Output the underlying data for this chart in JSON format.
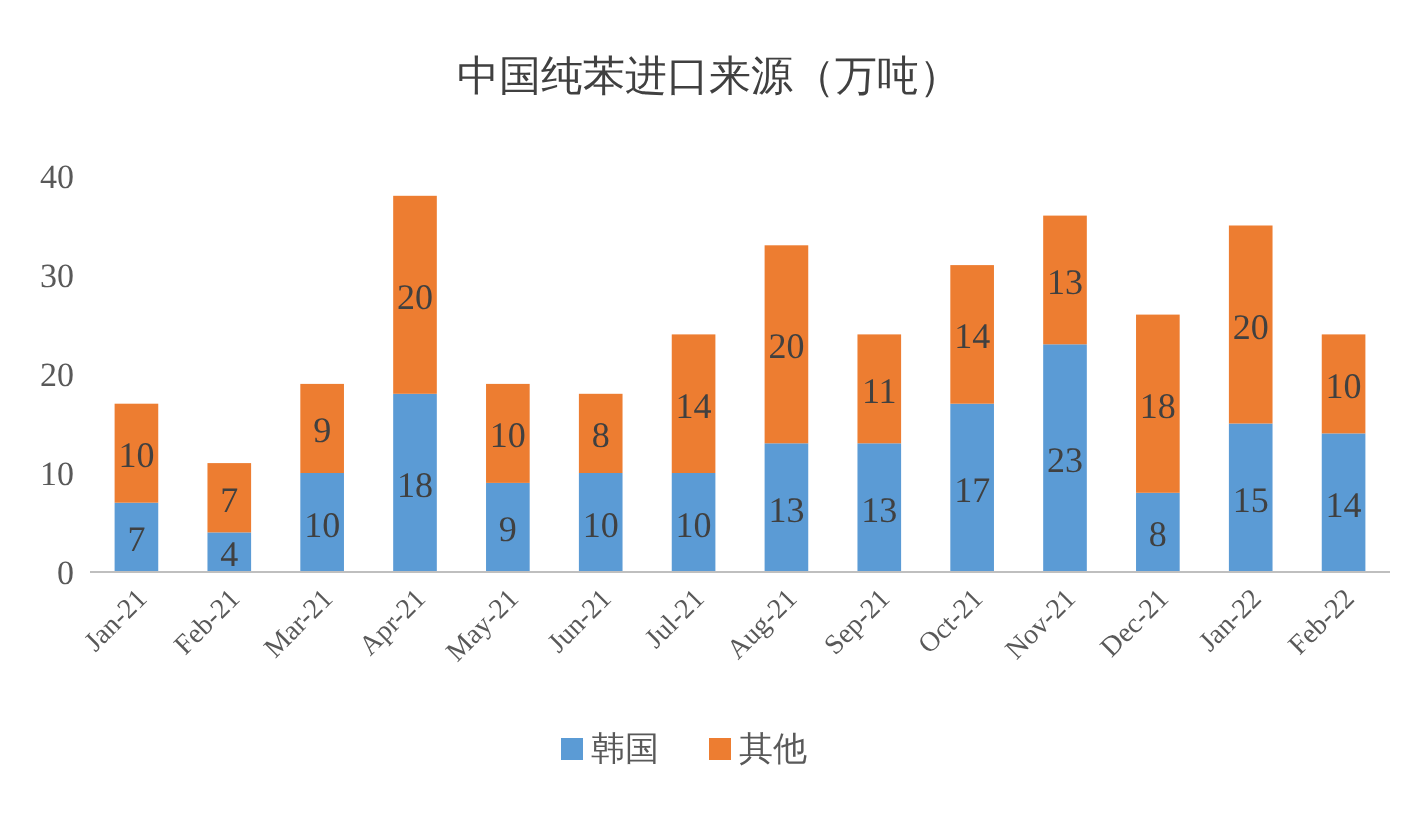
{
  "chart_data": {
    "type": "bar",
    "title": "中国纯苯进口来源（万吨）",
    "stacked": true,
    "data_labels": true,
    "legend": "bottom",
    "categories": [
      "Jan-21",
      "Feb-21",
      "Mar-21",
      "Apr-21",
      "May-21",
      "Jun-21",
      "Jul-21",
      "Aug-21",
      "Sep-21",
      "Oct-21",
      "Nov-21",
      "Dec-21",
      "Jan-22",
      "Feb-22"
    ],
    "series": [
      {
        "name": "韩国",
        "color": "#5b9bd5",
        "values": [
          7,
          4,
          10,
          18,
          9,
          10,
          10,
          13,
          13,
          17,
          23,
          8,
          15,
          14
        ]
      },
      {
        "name": "其他",
        "color": "#ed7d31",
        "values": [
          10,
          7,
          9,
          20,
          10,
          8,
          14,
          20,
          11,
          14,
          13,
          18,
          20,
          10
        ]
      }
    ],
    "ylim": [
      0,
      40
    ],
    "yticks": [
      0,
      10,
      20,
      30,
      40
    ]
  }
}
